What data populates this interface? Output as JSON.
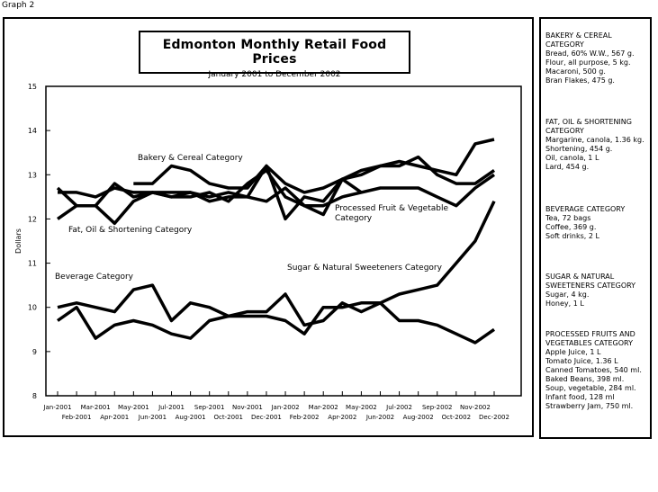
{
  "graph_label": "Graph 2",
  "chart_data": {
    "type": "line",
    "title": "Edmonton Monthly Retail Food Prices",
    "subtitle": "January 2001 to December 2002",
    "ylabel": "Dollars",
    "xlabel": "",
    "ylim": [
      8,
      15
    ],
    "yticks": [
      "8",
      "9",
      "10",
      "11",
      "12",
      "13",
      "14",
      "15"
    ],
    "x_top_row": [
      "Jan-2001",
      "Mar-2001",
      "May-2001",
      "Jul-2001",
      "Sep-2001",
      "Nov-2001",
      "Jan-2002",
      "Mar-2002",
      "May-2002",
      "Jul-2002",
      "Sep-2002",
      "Nov-2002"
    ],
    "x_bottom_row": [
      "Feb-2001",
      "Apr-2001",
      "Jun-2001",
      "Aug-2001",
      "Oct-2001",
      "Dec-2001",
      "Feb-2002",
      "Apr-2002",
      "Jun-2002",
      "Aug-2002",
      "Oct-2002",
      "Dec-2002"
    ],
    "series": [
      {
        "name": "Bakery & Cereal Category",
        "values": [
          12.7,
          12.3,
          12.3,
          12.8,
          12.5,
          12.6,
          12.5,
          12.6,
          12.4,
          12.5,
          12.5,
          13.2,
          12.0,
          12.5,
          12.4,
          12.9,
          12.6,
          null,
          null,
          null,
          null,
          null,
          null,
          null
        ]
      },
      {
        "name": "Fat, Oil & Shortening Category",
        "values": [
          12.6,
          12.6,
          12.5,
          12.7,
          12.6,
          12.6,
          12.6,
          12.6,
          12.5,
          12.6,
          12.5,
          12.4,
          12.7,
          12.3,
          12.3,
          12.5,
          12.6,
          12.7,
          12.7,
          12.7,
          12.5,
          12.3,
          12.7,
          13.0
        ]
      },
      {
        "name": "Processed Fruit & Vegetable Category",
        "values": [
          12.0,
          12.3,
          12.3,
          11.9,
          12.4,
          12.6,
          12.5,
          12.5,
          12.6,
          12.4,
          12.8,
          13.1,
          12.5,
          12.3,
          12.1,
          12.9,
          13.1,
          13.2,
          13.2,
          13.4,
          13.0,
          12.8,
          12.8,
          13.1
        ]
      },
      {
        "name": "Bakery & Cereal Category (upper)",
        "values": [
          null,
          null,
          null,
          null,
          12.8,
          12.8,
          13.2,
          13.1,
          12.8,
          12.7,
          12.7,
          13.2,
          12.8,
          12.6,
          12.7,
          12.9,
          13.0,
          13.2,
          13.3,
          13.2,
          13.1,
          13.0,
          13.7,
          13.8
        ]
      },
      {
        "name": "Beverage Category",
        "values": [
          10.0,
          10.1,
          10.0,
          9.9,
          10.4,
          10.5,
          9.7,
          10.1,
          10.0,
          9.8,
          9.9,
          9.9,
          10.3,
          9.6,
          9.7,
          10.1,
          9.9,
          10.1,
          9.7,
          9.7,
          9.6,
          9.4,
          9.2,
          9.5
        ]
      },
      {
        "name": "Sugar & Natural Sweeteners Category",
        "values": [
          9.7,
          10.0,
          9.3,
          9.6,
          9.7,
          9.6,
          9.4,
          9.3,
          9.7,
          9.8,
          9.8,
          9.8,
          9.7,
          9.4,
          10.0,
          10.0,
          10.1,
          10.1,
          10.3,
          10.4,
          10.5,
          11.0,
          11.5,
          12.4
        ]
      }
    ],
    "annotations": [
      {
        "text": "Bakery & Cereal Category"
      },
      {
        "text": "Fat, Oil & Shortening Category"
      },
      {
        "text": "Processed Fruit & Vegetable Category"
      },
      {
        "text": "Beverage Category"
      },
      {
        "text": "Sugar & Natural Sweeteners Category"
      }
    ]
  },
  "legend": [
    {
      "heading": "BAKERY & CEREAL CATEGORY",
      "items": [
        "Bread, 60% W.W., 567 g.",
        "Flour, all purpose, 5 kg.",
        "Macaroni, 500 g.",
        "Bran Flakes, 475 g."
      ]
    },
    {
      "heading": "FAT, OIL & SHORTENING CATEGORY",
      "items": [
        "Margarine, canola, 1.36 kg.",
        "Shortening, 454 g.",
        "Oil, canola, 1 L",
        "Lard, 454 g."
      ]
    },
    {
      "heading": "BEVERAGE CATEGORY",
      "items": [
        "Tea, 72 bags",
        "Coffee, 369 g.",
        "Soft drinks, 2 L"
      ]
    },
    {
      "heading": "SUGAR & NATURAL SWEETENERS CATEGORY",
      "items": [
        "Sugar, 4 kg.",
        "Honey, 1 L"
      ]
    },
    {
      "heading": "PROCESSED FRUITS AND VEGETABLES CATEGORY",
      "items": [
        "Apple Juice, 1 L",
        "Tomato Juice, 1.36 L",
        "Canned Tomatoes, 540 ml.",
        "Baked Beans, 398 ml.",
        "Soup, vegetable, 284 ml.",
        "Infant food, 128 ml",
        "Strawberry Jam, 750 ml."
      ]
    }
  ]
}
